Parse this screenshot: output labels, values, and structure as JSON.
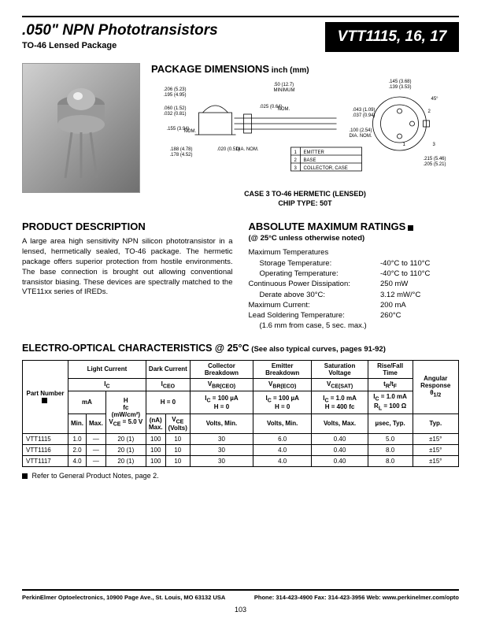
{
  "header": {
    "title": ".050\" NPN Phototransistors",
    "subtitle": "TO-46 Lensed Package",
    "part_box": "VTT1115, 16, 17"
  },
  "dims": {
    "heading": "PACKAGE DIMENSIONS",
    "unit_note": "inch (mm)",
    "case_line1": "CASE 3   TO-46 HERMETIC (LENSED)",
    "case_line2": "CHIP TYPE: 50T",
    "callouts": {
      "a": ".206 (5.23)",
      "a2": ".195 (4.95)",
      "b": ".060 (1.52)",
      "b2": ".032 (0.81)",
      "c": ".155 (3.94)",
      "c_note": "NOM.",
      "d": ".188 (4.78)",
      "d2": ".178 (4.52)",
      "e": ".020 (0.51)",
      "e_note": "DIA. NOM.",
      "f": ".50 (12.7)",
      "f_note": "MINIMUM",
      "g": ".025 (0.64)",
      "g_note": "NOM.",
      "h": ".145 (3.68)",
      "h2": ".139 (3.53)",
      "i": "45°",
      "j": ".043 (1.09)",
      "j2": ".037 (0.94)",
      "k": ".100 (2.54)",
      "k_note": "DIA. NOM.",
      "l": ".215 (5.46)",
      "l2": ".205 (5.21)",
      "pins": {
        "1": "EMITTER",
        "2": "BASE",
        "3": "COLLECTOR, CASE"
      }
    }
  },
  "desc": {
    "heading": "PRODUCT DESCRIPTION",
    "text": "A large area high sensitivity NPN silicon phototransistor in a lensed, hermetically sealed, TO-46 package. The hermetic package offers superior protection from hostile environments. The base connection is brought out allowing conventional transistor biasing. These devices are spectrally matched to the VTE11xx series of IREDs."
  },
  "amr": {
    "heading": "ABSOLUTE MAXIMUM RATINGS",
    "note": "(@ 25°C unless otherwise noted)",
    "rows": [
      {
        "label": "Maximum Temperatures",
        "value": "",
        "indent": false
      },
      {
        "label": "Storage Temperature:",
        "value": "-40°C to 110°C",
        "indent": true
      },
      {
        "label": "Operating Temperature:",
        "value": "-40°C to 110°C",
        "indent": true
      },
      {
        "label": "Continuous Power Dissipation:",
        "value": "250 mW",
        "indent": false
      },
      {
        "label": "Derate above 30°C:",
        "value": "3.12  mW/°C",
        "indent": true
      },
      {
        "label": "Maximum Current:",
        "value": "200 mA",
        "indent": false
      },
      {
        "label": "Lead Soldering Temperature:",
        "value": "260°C",
        "indent": false
      },
      {
        "label": "(1.6 mm from case, 5 sec. max.)",
        "value": "",
        "indent": true
      }
    ]
  },
  "eoc": {
    "heading": "ELECTRO-OPTICAL CHARACTERISTICS @ 25°C",
    "subnote": "(See also typical curves, pages 91-92)",
    "group_headers": [
      "Light Current",
      "Dark Current",
      "Collector Breakdown",
      "Emitter Breakdown",
      "Saturation Voltage",
      "Rise/Fall Time",
      "Angular Response θ₁/₂"
    ],
    "param_row": {
      "ic": "I_C",
      "iceo": "I_CEO",
      "vbrceo": "V_BR(CEO)",
      "vbreco": "V_BR(ECO)",
      "vcesat": "V_CE(SAT)",
      "trtf": "t_R/t_F"
    },
    "cond_row": {
      "ic_unit": "mA",
      "ic_h": "H\nfc (mW/cm²)\nV_CE = 5.0 V",
      "iceo": "H = 0",
      "vbrceo": "I_C = 100 µA\nH = 0",
      "vbreco": "I_C = 100 µA\nH = 0",
      "vcesat": "I_C = 1.0 mA\nH = 400 fc",
      "trtf": "I_C = 1.0 mA\nR_L = 100 Ω"
    },
    "unit_row": {
      "min": "Min.",
      "max": "Max.",
      "iceo_na": "(nA)\nMax.",
      "iceo_vce": "V_CE\n(Volts)",
      "vbrceo": "Volts, Min.",
      "vbreco": "Volts, Min.",
      "vcesat": "Volts, Max.",
      "trtf": "µsec, Typ.",
      "ang": "Typ."
    },
    "rows": [
      {
        "pn": "VTT1115",
        "min": "1.0",
        "max": "—",
        "h": "20 (1)",
        "iceo_na": "100",
        "iceo_vce": "10",
        "vbrceo": "30",
        "vbreco": "6.0",
        "vcesat": "0.40",
        "trtf": "5.0",
        "ang": "±15°"
      },
      {
        "pn": "VTT1116",
        "min": "2.0",
        "max": "—",
        "h": "20 (1)",
        "iceo_na": "100",
        "iceo_vce": "10",
        "vbrceo": "30",
        "vbreco": "4.0",
        "vcesat": "0.40",
        "trtf": "8.0",
        "ang": "±15°"
      },
      {
        "pn": "VTT1117",
        "min": "4.0",
        "max": "—",
        "h": "20 (1)",
        "iceo_na": "100",
        "iceo_vce": "10",
        "vbrceo": "30",
        "vbreco": "4.0",
        "vcesat": "0.40",
        "trtf": "8.0",
        "ang": "±15°"
      }
    ],
    "footnote": "Refer to General Product Notes, page 2."
  },
  "footer": {
    "left": "PerkinElmer Optoelectronics, 10900 Page Ave., St. Louis, MO 63132 USA",
    "right": "Phone: 314-423-4900 Fax: 314-423-3956 Web: www.perkinelmer.com/opto",
    "page": "103"
  },
  "colors": {
    "text": "#000000",
    "bg": "#ffffff",
    "box_bg": "#000000",
    "box_fg": "#ffffff",
    "photo_light": "#d0d0d0",
    "photo_dark": "#707070"
  }
}
